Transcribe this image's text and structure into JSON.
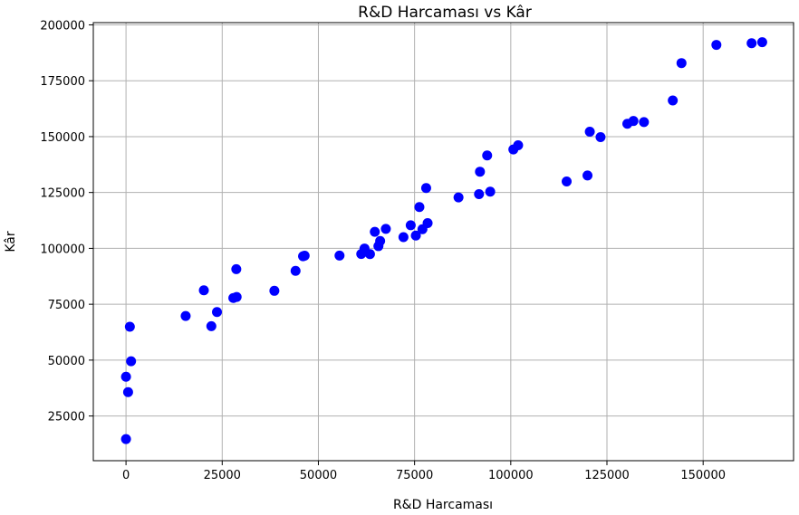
{
  "chart_data": {
    "type": "scatter",
    "title": "R&D Harcaması vs Kâr",
    "xlabel": "R&D Harcaması",
    "ylabel": "Kâr",
    "xlim": [
      -8500,
      173500
    ],
    "ylim": [
      5000,
      201000
    ],
    "xticks": [
      0,
      25000,
      50000,
      75000,
      100000,
      125000,
      150000
    ],
    "xtick_labels": [
      "0",
      "25000",
      "50000",
      "75000",
      "100000",
      "125000",
      "150000"
    ],
    "yticks": [
      25000,
      50000,
      75000,
      100000,
      125000,
      150000,
      175000,
      200000
    ],
    "ytick_labels": [
      "25000",
      "50000",
      "75000",
      "100000",
      "125000",
      "150000",
      "175000",
      "200000"
    ],
    "grid": true,
    "marker_color": "#0000ff",
    "points": [
      {
        "x": 165349,
        "y": 192262
      },
      {
        "x": 162598,
        "y": 191792
      },
      {
        "x": 153442,
        "y": 191050
      },
      {
        "x": 144372,
        "y": 182902
      },
      {
        "x": 142107,
        "y": 166188
      },
      {
        "x": 131877,
        "y": 156991
      },
      {
        "x": 134615,
        "y": 156523
      },
      {
        "x": 130298,
        "y": 155753
      },
      {
        "x": 120543,
        "y": 152212
      },
      {
        "x": 123335,
        "y": 149760
      },
      {
        "x": 101913,
        "y": 146122
      },
      {
        "x": 100672,
        "y": 144259
      },
      {
        "x": 93864,
        "y": 141586
      },
      {
        "x": 91992,
        "y": 134307
      },
      {
        "x": 119943,
        "y": 132602
      },
      {
        "x": 114524,
        "y": 129917
      },
      {
        "x": 78013,
        "y": 126993
      },
      {
        "x": 94657,
        "y": 125371
      },
      {
        "x": 91749,
        "y": 124267
      },
      {
        "x": 86420,
        "y": 122777
      },
      {
        "x": 76254,
        "y": 118474
      },
      {
        "x": 78389,
        "y": 111313
      },
      {
        "x": 73995,
        "y": 110352
      },
      {
        "x": 67533,
        "y": 108734
      },
      {
        "x": 77044,
        "y": 108552
      },
      {
        "x": 64665,
        "y": 107404
      },
      {
        "x": 75329,
        "y": 105734
      },
      {
        "x": 72108,
        "y": 105008
      },
      {
        "x": 66052,
        "y": 103282
      },
      {
        "x": 65605,
        "y": 101004
      },
      {
        "x": 61994,
        "y": 99937
      },
      {
        "x": 61136,
        "y": 97484
      },
      {
        "x": 63409,
        "y": 97427
      },
      {
        "x": 55494,
        "y": 96779
      },
      {
        "x": 46426,
        "y": 96712
      },
      {
        "x": 46014,
        "y": 96479
      },
      {
        "x": 28664,
        "y": 90708
      },
      {
        "x": 44070,
        "y": 89949
      },
      {
        "x": 20230,
        "y": 81230
      },
      {
        "x": 38559,
        "y": 81006
      },
      {
        "x": 28754,
        "y": 78240
      },
      {
        "x": 27893,
        "y": 77798
      },
      {
        "x": 23641,
        "y": 71498
      },
      {
        "x": 15506,
        "y": 69759
      },
      {
        "x": 22178,
        "y": 65200
      },
      {
        "x": 1001,
        "y": 64927
      },
      {
        "x": 1315,
        "y": 49491
      },
      {
        "x": 0,
        "y": 42560
      },
      {
        "x": 542,
        "y": 35673
      },
      {
        "x": 0,
        "y": 14681
      }
    ]
  }
}
